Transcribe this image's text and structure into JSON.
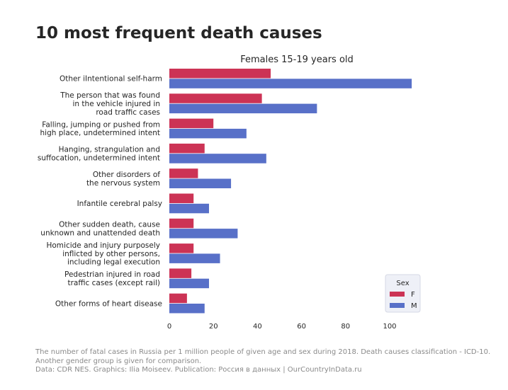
{
  "title": "10 most frequent death causes",
  "footer": {
    "line1": "The number of fatal cases in Russia per 1 million people of given age and sex during 2018. Death causes classification - ICD-10.",
    "line2": "Another gender group is given for comparison.",
    "line3": "Data: CDR NES. Graphics: Ilia Moiseev. Publication: Россия в данных | OurCountryInData.ru"
  },
  "colors": {
    "F": "#cc3355",
    "M": "#5870c8"
  },
  "chart_data": {
    "type": "bar",
    "orientation": "horizontal",
    "subtitle": "Females 15-19 years old",
    "categories": [
      [
        "Other iIntentional self-harm"
      ],
      [
        "The person that was found",
        "in the vehicle injured in",
        "road traffic cases"
      ],
      [
        "Falling, jumping or pushed from",
        "high place, undetermined intent"
      ],
      [
        "Hanging, strangulation and",
        "suffocation, undetermined intent"
      ],
      [
        "Other disorders of",
        "the nervous system"
      ],
      [
        "Infantile cerebral palsy"
      ],
      [
        "Other sudden death, cause",
        "unknown and unattended death"
      ],
      [
        "Homicide and injury purposely",
        "inflicted by other persons,",
        "including legal execution"
      ],
      [
        "Pedestrian injured in road",
        "traffic cases (except rail)"
      ],
      [
        "Other forms of heart disease"
      ]
    ],
    "series": [
      {
        "name": "F",
        "values": [
          46,
          42,
          20,
          16,
          13,
          11,
          11,
          11,
          10,
          8
        ]
      },
      {
        "name": "M",
        "values": [
          110,
          67,
          35,
          44,
          28,
          18,
          31,
          23,
          18,
          16
        ]
      }
    ],
    "xlim": [
      0,
      115
    ],
    "xticks": [
      0,
      20,
      40,
      60,
      80,
      100
    ],
    "legend": {
      "title": "Sex",
      "placement": "bottom-right"
    },
    "grid": false
  }
}
